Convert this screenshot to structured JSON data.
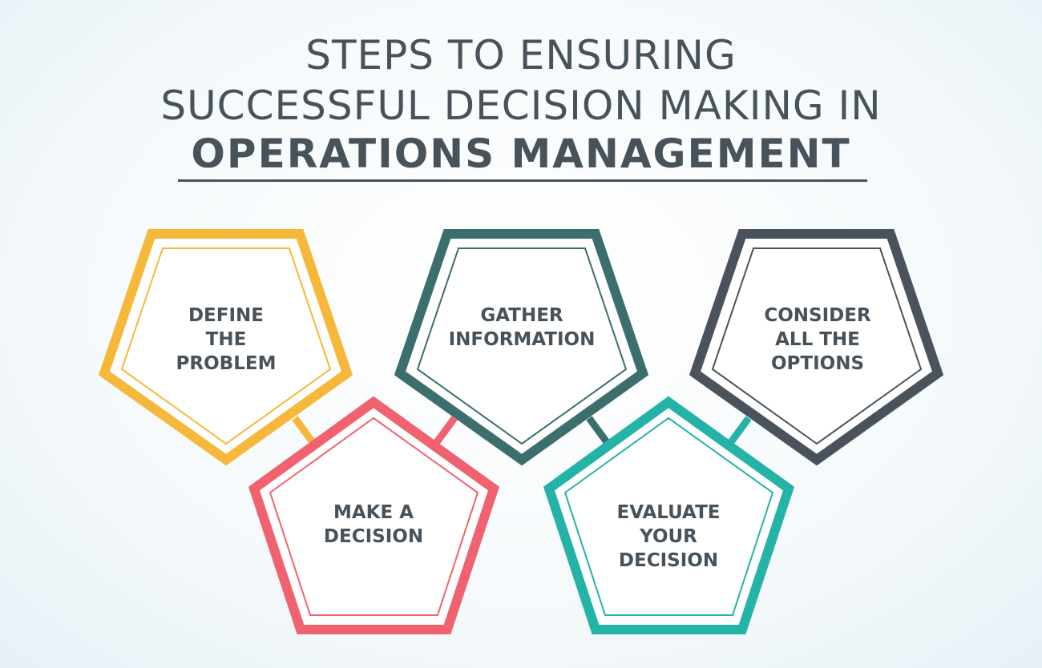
{
  "title": {
    "line1": "STEPS TO ENSURING",
    "line2": "SUCCESSFUL DECISION MAKING IN",
    "line3": "OPERATIONS MANAGEMENT"
  },
  "steps": [
    {
      "label": "DEFINE\nTHE\nPROBLEM",
      "color": "#f6b83a"
    },
    {
      "label": "MAKE A\nDECISION",
      "color": "#f0626f"
    },
    {
      "label": "GATHER\nINFORMATION",
      "color": "#3d6e6e"
    },
    {
      "label": "EVALUATE\nYOUR\nDECISION",
      "color": "#25b3a8"
    },
    {
      "label": "CONSIDER\nALL THE\nOPTIONS",
      "color": "#4a535c"
    }
  ],
  "text_color": "#47525a"
}
